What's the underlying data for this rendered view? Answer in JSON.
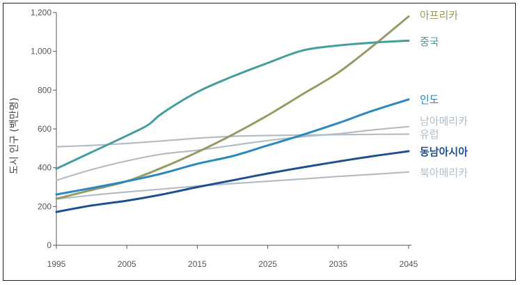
{
  "chart_data": {
    "type": "line",
    "title": "",
    "xlabel": "",
    "ylabel": "도시 인구 (백만명)",
    "xlim": [
      1995,
      2045
    ],
    "ylim": [
      0,
      1200
    ],
    "x_ticks": [
      "1995",
      "2005",
      "2015",
      "2025",
      "2035",
      "2045"
    ],
    "y_ticks": [
      "0",
      "200",
      "400",
      "600",
      "800",
      "1,000",
      "1,200"
    ],
    "grid": false,
    "legend": "right end labels",
    "series": [
      {
        "name": "아프리카",
        "color": "#999966",
        "bold": false,
        "x": [
          1995,
          2000,
          2005,
          2010,
          2015,
          2020,
          2025,
          2030,
          2035,
          2040,
          2045
        ],
        "y": [
          240,
          285,
          330,
          400,
          480,
          570,
          670,
          780,
          890,
          1030,
          1180
        ]
      },
      {
        "name": "중국",
        "color": "#459e9b",
        "bold": false,
        "x": [
          1995,
          2000,
          2005,
          2008,
          2010,
          2015,
          2020,
          2025,
          2030,
          2035,
          2040,
          2045
        ],
        "y": [
          395,
          480,
          565,
          620,
          680,
          790,
          870,
          940,
          1005,
          1030,
          1045,
          1055
        ]
      },
      {
        "name": "인도",
        "color": "#2a88be",
        "bold": false,
        "x": [
          1995,
          2000,
          2005,
          2010,
          2015,
          2020,
          2025,
          2030,
          2035,
          2040,
          2045
        ],
        "y": [
          262,
          295,
          330,
          370,
          420,
          460,
          515,
          570,
          630,
          695,
          752
        ]
      },
      {
        "name": "남아메리카",
        "color": "#b2bdc6",
        "bold": false,
        "x": [
          1995,
          2000,
          2005,
          2010,
          2015,
          2020,
          2025,
          2030,
          2035,
          2040,
          2045
        ],
        "y": [
          335,
          390,
          435,
          470,
          490,
          515,
          540,
          560,
          575,
          595,
          612
        ]
      },
      {
        "name": "유럽",
        "color": "#b2bdc6",
        "bold": false,
        "x": [
          1995,
          2000,
          2005,
          2010,
          2015,
          2020,
          2025,
          2030,
          2035,
          2040,
          2045
        ],
        "y": [
          508,
          515,
          525,
          538,
          552,
          562,
          566,
          568,
          570,
          572,
          573
        ]
      },
      {
        "name": "동남아시아",
        "color": "#1f4f90",
        "bold": true,
        "x": [
          1995,
          2000,
          2005,
          2010,
          2015,
          2020,
          2025,
          2030,
          2035,
          2040,
          2045
        ],
        "y": [
          172,
          205,
          230,
          262,
          300,
          335,
          370,
          402,
          432,
          460,
          485
        ]
      },
      {
        "name": "북아메리카",
        "color": "#b2bdc6",
        "bold": false,
        "x": [
          1995,
          2000,
          2005,
          2010,
          2015,
          2020,
          2025,
          2030,
          2035,
          2040,
          2045
        ],
        "y": [
          238,
          258,
          275,
          290,
          305,
          318,
          330,
          342,
          355,
          366,
          378
        ]
      }
    ]
  }
}
